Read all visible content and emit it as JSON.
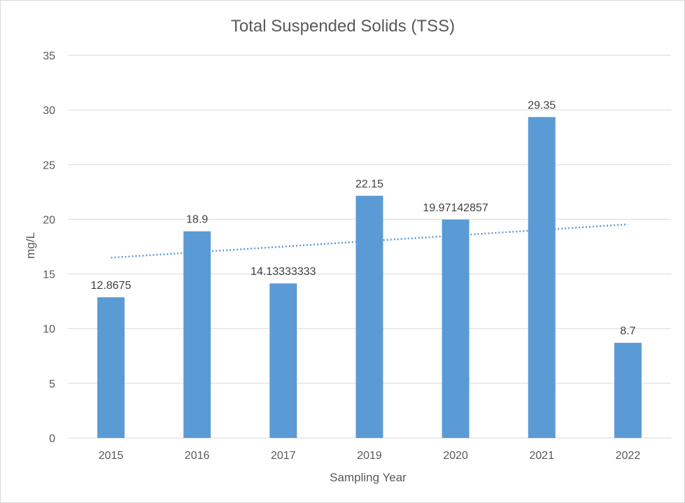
{
  "chart_data": {
    "type": "bar",
    "title": "Total Suspended Solids (TSS)",
    "xlabel": "Sampling Year",
    "ylabel": "mg/L",
    "categories": [
      "2015",
      "2016",
      "2017",
      "2019",
      "2020",
      "2021",
      "2022"
    ],
    "series": [
      {
        "values": [
          12.8675,
          18.9,
          14.13333333,
          22.15,
          19.97142857,
          29.35,
          8.7
        ],
        "data_labels": [
          "12.8675",
          "18.9",
          "14.13333333",
          "22.15",
          "19.97142857",
          "29.35",
          "8.7"
        ],
        "color": "#5b9bd5"
      }
    ],
    "trendline": {
      "type": "linear",
      "style": "dotted",
      "color": "#5b9bd5"
    },
    "ylim": [
      0,
      35
    ],
    "yticks": [
      "0",
      "5",
      "10",
      "15",
      "20",
      "25",
      "30",
      "35"
    ],
    "grid": true,
    "gridline_color": "#d9d9d9",
    "legend": false
  }
}
